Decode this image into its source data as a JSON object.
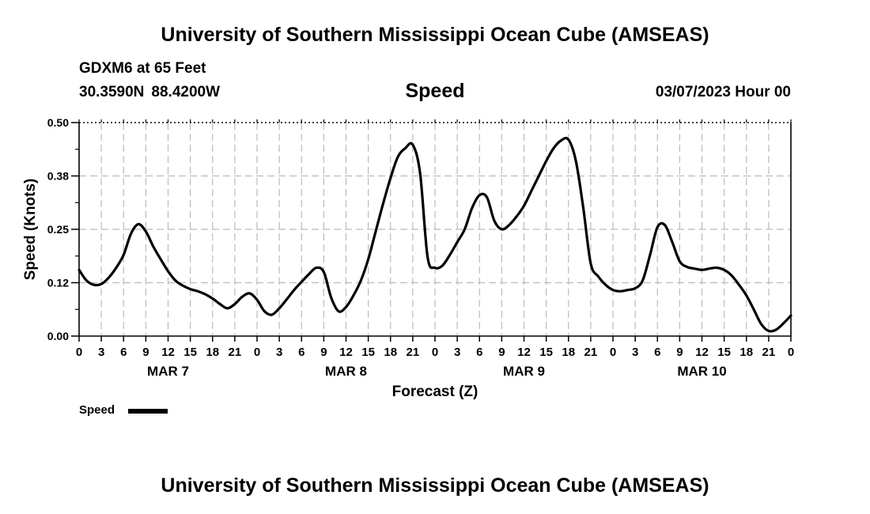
{
  "header": {
    "title": "University of Southern Mississippi Ocean Cube (AMSEAS)",
    "station": "GDXM6 at 65 Feet",
    "lat": "30.3590N",
    "lon": "88.4200W",
    "run_time": "03/07/2023 Hour 00"
  },
  "footer": {
    "title": "University of Southern Mississippi Ocean Cube (AMSEAS)"
  },
  "chart_data": {
    "type": "line",
    "title": "Speed",
    "xlabel": "Forecast (Z)",
    "ylabel": "Speed (Knots)",
    "ylim": [
      0,
      0.5
    ],
    "yticks": [
      "0.00",
      "0.12",
      "0.25",
      "0.38",
      "0.50"
    ],
    "xlim": [
      0,
      96
    ],
    "xtick_labels": [
      "0",
      "3",
      "6",
      "9",
      "12",
      "15",
      "18",
      "21",
      "0",
      "3",
      "6",
      "9",
      "12",
      "15",
      "18",
      "21",
      "0",
      "3",
      "6",
      "9",
      "12",
      "15",
      "18",
      "21",
      "0",
      "3",
      "6",
      "9",
      "12",
      "15",
      "18",
      "21",
      "0"
    ],
    "day_labels": [
      "MAR 7",
      "MAR 8",
      "MAR 9",
      "MAR 10"
    ],
    "grid": true,
    "legend": "bottom-left",
    "series": [
      {
        "name": "Speed",
        "color": "#000000",
        "x": [
          0,
          1,
          2,
          3,
          4,
          5,
          6,
          7,
          8,
          9,
          10,
          11,
          12,
          13,
          14,
          15,
          16,
          17,
          18,
          19,
          20,
          21,
          22,
          23,
          24,
          25,
          26,
          27,
          28,
          29,
          30,
          31,
          32,
          33,
          34,
          35,
          36,
          37,
          38,
          39,
          40,
          41,
          42,
          43,
          44,
          45,
          46,
          47,
          48,
          49,
          50,
          51,
          52,
          53,
          54,
          55,
          56,
          57,
          58,
          59,
          60,
          61,
          62,
          63,
          64,
          65,
          66,
          67,
          68,
          69,
          70,
          71,
          72,
          73,
          74,
          75,
          76,
          77,
          78,
          79,
          80,
          81,
          82,
          83,
          84,
          85,
          86,
          87,
          88,
          89,
          90,
          91,
          92,
          93,
          94,
          95,
          96
        ],
        "values": [
          0.155,
          0.13,
          0.12,
          0.122,
          0.137,
          0.16,
          0.19,
          0.24,
          0.262,
          0.245,
          0.21,
          0.18,
          0.152,
          0.13,
          0.118,
          0.11,
          0.105,
          0.098,
          0.088,
          0.075,
          0.065,
          0.075,
          0.092,
          0.1,
          0.085,
          0.058,
          0.05,
          0.065,
          0.086,
          0.108,
          0.127,
          0.145,
          0.16,
          0.15,
          0.09,
          0.058,
          0.068,
          0.095,
          0.13,
          0.18,
          0.245,
          0.31,
          0.37,
          0.42,
          0.44,
          0.448,
          0.38,
          0.185,
          0.16,
          0.165,
          0.19,
          0.22,
          0.25,
          0.3,
          0.33,
          0.325,
          0.27,
          0.25,
          0.26,
          0.28,
          0.305,
          0.34,
          0.375,
          0.41,
          0.44,
          0.458,
          0.46,
          0.41,
          0.3,
          0.17,
          0.14,
          0.12,
          0.108,
          0.105,
          0.108,
          0.112,
          0.13,
          0.19,
          0.255,
          0.26,
          0.22,
          0.175,
          0.162,
          0.158,
          0.155,
          0.158,
          0.16,
          0.155,
          0.142,
          0.12,
          0.095,
          0.062,
          0.028,
          0.012,
          0.015,
          0.03,
          0.048
        ]
      }
    ]
  },
  "legend": {
    "label": "Speed"
  }
}
